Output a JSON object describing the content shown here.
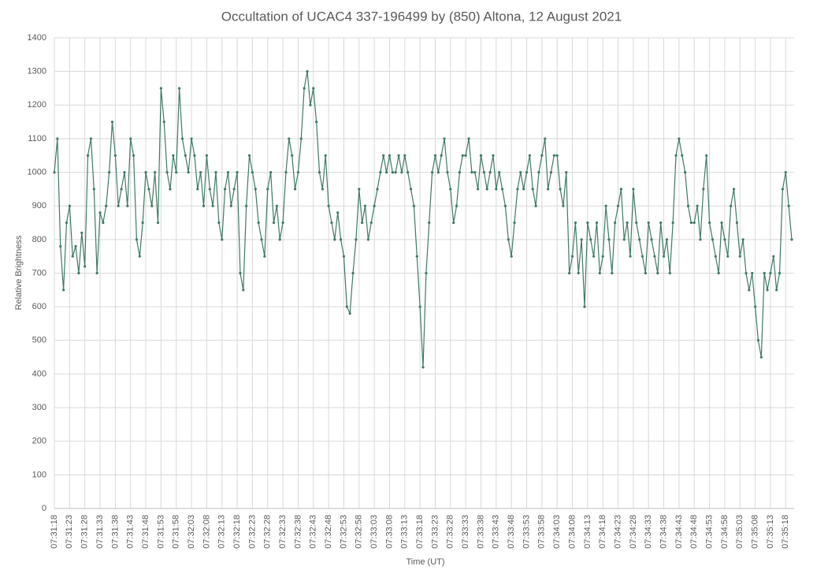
{
  "chart_data": {
    "type": "line",
    "title": "Occultation of UCAC4 337-196499 by (850) Altona, 12 August 2021",
    "x_label": "Time (UT)",
    "y_label": "Relative Brightness",
    "categories": [
      "07:31:18",
      null,
      null,
      null,
      null,
      "07:31:23",
      null,
      null,
      null,
      null,
      "07:31:28",
      null,
      null,
      null,
      null,
      "07:31:33",
      null,
      null,
      null,
      null,
      "07:31:38",
      null,
      null,
      null,
      null,
      "07:31:43",
      null,
      null,
      null,
      null,
      "07:31:48",
      null,
      null,
      null,
      null,
      "07:31:53",
      null,
      null,
      null,
      null,
      "07:31:58",
      null,
      null,
      null,
      null,
      "07:32:03",
      null,
      null,
      null,
      null,
      "07:32:08",
      null,
      null,
      null,
      null,
      "07:32:13",
      null,
      null,
      null,
      null,
      "07:32:18",
      null,
      null,
      null,
      null,
      "07:32:23",
      null,
      null,
      null,
      null,
      "07:32:28",
      null,
      null,
      null,
      null,
      "07:32:33",
      null,
      null,
      null,
      null,
      "07:32:38",
      null,
      null,
      null,
      null,
      "07:32:43",
      null,
      null,
      null,
      null,
      "07:32:48",
      null,
      null,
      null,
      null,
      "07:32:53",
      null,
      null,
      null,
      null,
      "07:32:58",
      null,
      null,
      null,
      null,
      "07:33:03",
      null,
      null,
      null,
      null,
      "07:33:08",
      null,
      null,
      null,
      null,
      "07:33:13",
      null,
      null,
      null,
      null,
      "07:33:18",
      null,
      null,
      null,
      null,
      "07:33:23",
      null,
      null,
      null,
      null,
      "07:33:28",
      null,
      null,
      null,
      null,
      "07:33:33",
      null,
      null,
      null,
      null,
      "07:33:38",
      null,
      null,
      null,
      null,
      "07:33:43",
      null,
      null,
      null,
      null,
      "07:33:48",
      null,
      null,
      null,
      null,
      "07:33:53",
      null,
      null,
      null,
      null,
      "07:33:58",
      null,
      null,
      null,
      null,
      "07:34:03",
      null,
      null,
      null,
      null,
      "07:34:08",
      null,
      null,
      null,
      null,
      "07:34:13",
      null,
      null,
      null,
      null,
      "07:34:18",
      null,
      null,
      null,
      null,
      "07:34:23",
      null,
      null,
      null,
      null,
      "07:34:28",
      null,
      null,
      null,
      null,
      "07:34:33",
      null,
      null,
      null,
      null,
      "07:34:38",
      null,
      null,
      null,
      null,
      "07:34:43",
      null,
      null,
      null,
      null,
      "07:34:48",
      null,
      null,
      null,
      null,
      "07:34:53",
      null,
      null,
      null,
      null,
      "07:34:58",
      null,
      null,
      null,
      null,
      "07:35:03",
      null,
      null,
      null,
      null,
      "07:35:08",
      null,
      null,
      null,
      null,
      "07:35:13",
      null,
      null,
      null,
      null,
      "07:35:18",
      null,
      null
    ],
    "values": [
      1000,
      1100,
      780,
      650,
      850,
      900,
      750,
      780,
      700,
      820,
      720,
      1050,
      1100,
      950,
      700,
      880,
      850,
      900,
      1000,
      1150,
      1050,
      900,
      950,
      1000,
      900,
      1100,
      1050,
      800,
      750,
      850,
      1000,
      950,
      900,
      1000,
      850,
      1250,
      1150,
      1000,
      950,
      1050,
      1000,
      1250,
      1100,
      1050,
      1000,
      1100,
      1050,
      950,
      1000,
      900,
      1050,
      950,
      900,
      1000,
      850,
      800,
      950,
      1000,
      900,
      950,
      1000,
      700,
      650,
      900,
      1050,
      1000,
      950,
      850,
      800,
      750,
      950,
      1000,
      850,
      900,
      800,
      850,
      1000,
      1100,
      1050,
      950,
      1000,
      1100,
      1250,
      1300,
      1200,
      1250,
      1150,
      1000,
      950,
      1050,
      900,
      850,
      800,
      880,
      800,
      750,
      600,
      580,
      700,
      800,
      950,
      850,
      900,
      800,
      850,
      900,
      950,
      1000,
      1050,
      1000,
      1050,
      1000,
      1000,
      1050,
      1000,
      1050,
      1000,
      950,
      900,
      750,
      600,
      420,
      700,
      850,
      1000,
      1050,
      1000,
      1050,
      1100,
      1000,
      950,
      850,
      900,
      1000,
      1050,
      1050,
      1100,
      1000,
      1000,
      950,
      1050,
      1000,
      950,
      1000,
      1050,
      950,
      1000,
      950,
      900,
      800,
      750,
      850,
      950,
      1000,
      950,
      1000,
      1050,
      950,
      900,
      1000,
      1050,
      1100,
      950,
      1000,
      1050,
      1050,
      950,
      900,
      1000,
      700,
      750,
      850,
      700,
      800,
      600,
      850,
      800,
      750,
      850,
      700,
      750,
      900,
      800,
      700,
      850,
      900,
      950,
      800,
      850,
      750,
      950,
      850,
      800,
      750,
      700,
      850,
      800,
      750,
      700,
      850,
      750,
      800,
      700,
      850,
      1050,
      1100,
      1050,
      1000,
      900,
      850,
      850,
      900,
      800,
      950,
      1050,
      850,
      800,
      750,
      700,
      850,
      800,
      750,
      900,
      950,
      850,
      750,
      800,
      700,
      650,
      700,
      600,
      500,
      450,
      700,
      650,
      700,
      750,
      650,
      700,
      950,
      1000,
      900,
      800
    ],
    "color": "#3f7a63",
    "ylim": [
      0,
      1400
    ],
    "yticks": [
      0,
      100,
      200,
      300,
      400,
      500,
      600,
      700,
      800,
      900,
      1000,
      1100,
      1200,
      1300,
      1400
    ],
    "grid": true
  }
}
